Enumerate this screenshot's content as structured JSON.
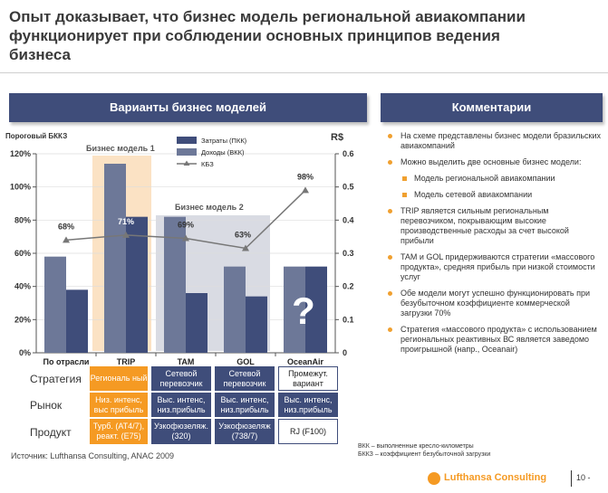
{
  "title": "Опыт доказывает, что бизнес модель региональной авиакомпании функционирует при соблюдении основных принципов ведения бизнеса",
  "left_header": "Варианты бизнес моделей",
  "right_header": "Комментарии",
  "chart_data": {
    "type": "bar",
    "categories": [
      "По отрасли",
      "TRIP",
      "TAM",
      "GOL",
      "OceanAir"
    ],
    "series": [
      {
        "name": "Затраты (ПКК)",
        "values": [
          0.29,
          0.57,
          0.41,
          0.26,
          0.26
        ],
        "color": "#6d7898"
      },
      {
        "name": "Доходы (ВКК)",
        "values": [
          0.19,
          0.41,
          0.18,
          0.17,
          0.26
        ],
        "color": "#3f4d7a"
      }
    ],
    "line": {
      "name": "КБЗ",
      "values": [
        68,
        71,
        69,
        63,
        98
      ],
      "labels": [
        "68%",
        "71%",
        "69%",
        "63%",
        "98%"
      ],
      "color": "#777777"
    },
    "y_left_label": "Пороговый БККЗ",
    "y_left_ticks": [
      "0%",
      "20%",
      "40%",
      "60%",
      "80%",
      "100%",
      "120%"
    ],
    "y_right_label": "R$",
    "y_right_ticks": [
      "0",
      "0.1",
      "0.2",
      "0.3",
      "0.4",
      "0.5",
      "0.6"
    ],
    "ylim_right": [
      0,
      0.6
    ],
    "ylim_left": [
      0,
      120
    ],
    "group_labels": [
      "Бизнес модель 1",
      "Бизнес модель 2"
    ],
    "question_mark": "?",
    "legend": "top-center"
  },
  "table": {
    "row_labels": [
      "Стратегия",
      "Рынок",
      "Продукт"
    ],
    "rows": [
      [
        "Региональ ный",
        "Сетевой перевозчик",
        "Сетевой перевозчик",
        "Промежут. вариант"
      ],
      [
        "Низ. интенс, выс прибыль",
        "Выс. интенс, низ.прибыль",
        "Выс. интенс, низ.прибыль",
        "Выс. интенс, низ.прибыль"
      ],
      [
        "Турб. (AT4/7), реакт. (E75)",
        "Узкофюзеляж. (320)",
        "Узкофюзеляж (738/7)",
        "RJ (F100)"
      ]
    ]
  },
  "comments": [
    {
      "level": 1,
      "text": "На схеме представлены бизнес модели бразильских авиакомпаний"
    },
    {
      "level": 1,
      "text": "Можно выделить две основные бизнес модели:"
    },
    {
      "level": 2,
      "text": "Модель региональной авиакомпании"
    },
    {
      "level": 2,
      "text": "Модель сетевой авиакомпании"
    },
    {
      "level": 1,
      "text": "TRIP является сильным региональным перевозчиком, покрывающим высокие производственные расходы за счет высокой прибыли"
    },
    {
      "level": 1,
      "text": "TAM и GOL придерживаются стратегии «массового продукта», средняя прибыль при низкой стоимости услуг"
    },
    {
      "level": 1,
      "text": "Обе модели могут успешно функционировать при безубыточном коэффициенте коммерческой загрузки 70%"
    },
    {
      "level": 1,
      "text": "Стратегия «массового продукта» с использованием региональных реактивных ВС является заведомо проигрышной (напр., Oceanair)"
    }
  ],
  "source": "Источник: Lufthansa Consulting, ANAC 2009",
  "footnotes": [
    "ВКК – выполненные кресло-километры",
    "БККЗ – коэффициент безубыточной загрузки"
  ],
  "brand": "Lufthansa Consulting",
  "page_number": "10 -"
}
